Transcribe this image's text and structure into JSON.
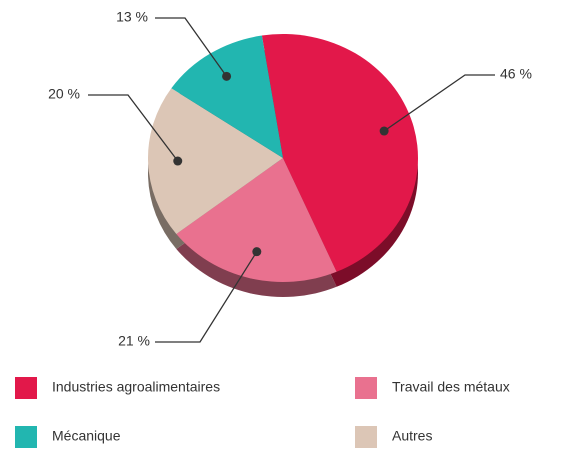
{
  "chart_data": {
    "type": "pie",
    "categories": [
      "Industries agroalimentaires",
      "Travail des métaux",
      "Autres",
      "Mécanique"
    ],
    "values": [
      46,
      21,
      20,
      13
    ],
    "value_labels": [
      "46 %",
      "21 %",
      "20 %",
      "13 %"
    ],
    "colors": [
      "#e2184a",
      "#e9718f",
      "#dcc6b6",
      "#22b6b0"
    ]
  }
}
